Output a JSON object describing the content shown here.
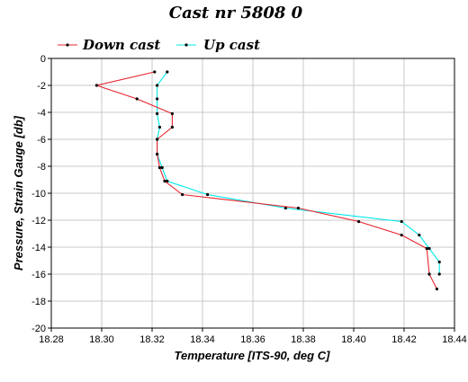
{
  "chart_data": {
    "type": "line",
    "title": "Cast nr 5808 0",
    "xlabel": "Temperature [ITS-90, deg C]",
    "ylabel": "Pressure, Strain Gauge [db]",
    "xlim": [
      18.28,
      18.44
    ],
    "ylim": [
      -20,
      0
    ],
    "xticks": [
      "18.28",
      "18.30",
      "18.32",
      "18.34",
      "18.36",
      "18.38",
      "18.40",
      "18.42",
      "18.44"
    ],
    "yticks": [
      "0",
      "-2",
      "-4",
      "-6",
      "-8",
      "-10",
      "-12",
      "-14",
      "-16",
      "-18",
      "-20"
    ],
    "grid": true,
    "legend_position": "top-left",
    "series": [
      {
        "name": "Down cast",
        "color": "#e8242c",
        "x": [
          18.321,
          18.298,
          18.314,
          18.328,
          18.328,
          18.322,
          18.322,
          18.323,
          18.325,
          18.332,
          18.378,
          18.402,
          18.419,
          18.429,
          18.43,
          18.433
        ],
        "y": [
          -1.0,
          -2.0,
          -3.0,
          -4.1,
          -5.1,
          -6.0,
          -7.1,
          -8.1,
          -9.1,
          -10.1,
          -11.1,
          -12.1,
          -13.1,
          -14.1,
          -16.0,
          -17.1
        ]
      },
      {
        "name": "Up cast",
        "color": "#00e8e8",
        "x": [
          18.326,
          18.322,
          18.322,
          18.322,
          18.323,
          18.322,
          18.322,
          18.324,
          18.326,
          18.342,
          18.373,
          18.419,
          18.426,
          18.43,
          18.434,
          18.434
        ],
        "y": [
          -1.0,
          -2.0,
          -3.0,
          -4.1,
          -5.1,
          -6.0,
          -7.1,
          -8.1,
          -9.1,
          -10.1,
          -11.1,
          -12.1,
          -13.1,
          -14.1,
          -15.1,
          -16.0
        ]
      }
    ]
  }
}
